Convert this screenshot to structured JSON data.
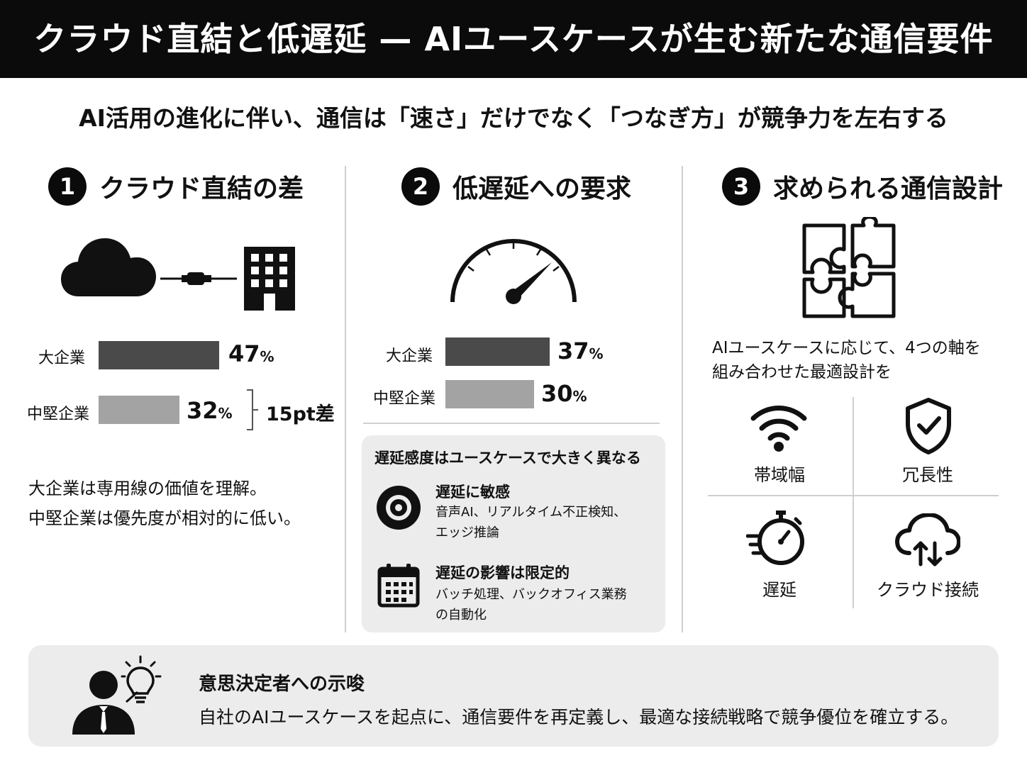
{
  "title": "クラウド直結と低遅延 — AIユースケースが生む新たな通信要件",
  "subtitle": "AI活用の進化に伴い、通信は「速さ」だけでなく「つなぎ方」が競争力を左右する",
  "section1": {
    "number": "1",
    "heading": "クラウド直結の差",
    "icons": [
      "cloud-icon",
      "connector-icon",
      "building-icon"
    ],
    "bars": [
      {
        "label": "大企業",
        "value": "47",
        "unit": "%",
        "color": "#4a4a4a"
      },
      {
        "label": "中堅企業",
        "value": "32",
        "unit": "%",
        "color": "#a3a3a3"
      }
    ],
    "difference": "15pt差",
    "text_line1": "大企業は専用線の価値を理解。",
    "text_line2": "中堅企業は優先度が相対的に低い。"
  },
  "section2": {
    "number": "2",
    "heading": "低遅延への要求",
    "icons": [
      "speedometer-icon"
    ],
    "bars": [
      {
        "label": "大企業",
        "value": "37",
        "unit": "%",
        "color": "#4a4a4a"
      },
      {
        "label": "中堅企業",
        "value": "30",
        "unit": "%",
        "color": "#a3a3a3"
      }
    ],
    "box": {
      "title": "遅延感度はユースケースで大きく異なる",
      "items": [
        {
          "icon": "target-icon",
          "title": "遅延に敏感",
          "desc_line1": "音声AI、リアルタイム不正検知、",
          "desc_line2": "エッジ推論"
        },
        {
          "icon": "calendar-icon",
          "title": "遅延の影響は限定的",
          "desc_line1": "バッチ処理、バックオフィス業務",
          "desc_line2": "の自動化"
        }
      ]
    }
  },
  "section3": {
    "number": "3",
    "heading": "求められる通信設計",
    "icons": [
      "puzzle-icon"
    ],
    "text_line1": "AIユースケースに応じて、4つの軸を",
    "text_line2": "組み合わせた最適設計を",
    "axes": [
      {
        "icon": "wifi-icon",
        "label": "帯域幅"
      },
      {
        "icon": "shield-check-icon",
        "label": "冗長性"
      },
      {
        "icon": "stopwatch-icon",
        "label": "遅延"
      },
      {
        "icon": "cloud-sync-icon",
        "label": "クラウド接続"
      }
    ]
  },
  "implication": {
    "icon": "person-lightbulb-icon",
    "title": "意思決定者への示唆",
    "text": "自社のAIユースケースを起点に、通信要件を再定義し、最適な接続戦略で競争優位を確立する。"
  }
}
